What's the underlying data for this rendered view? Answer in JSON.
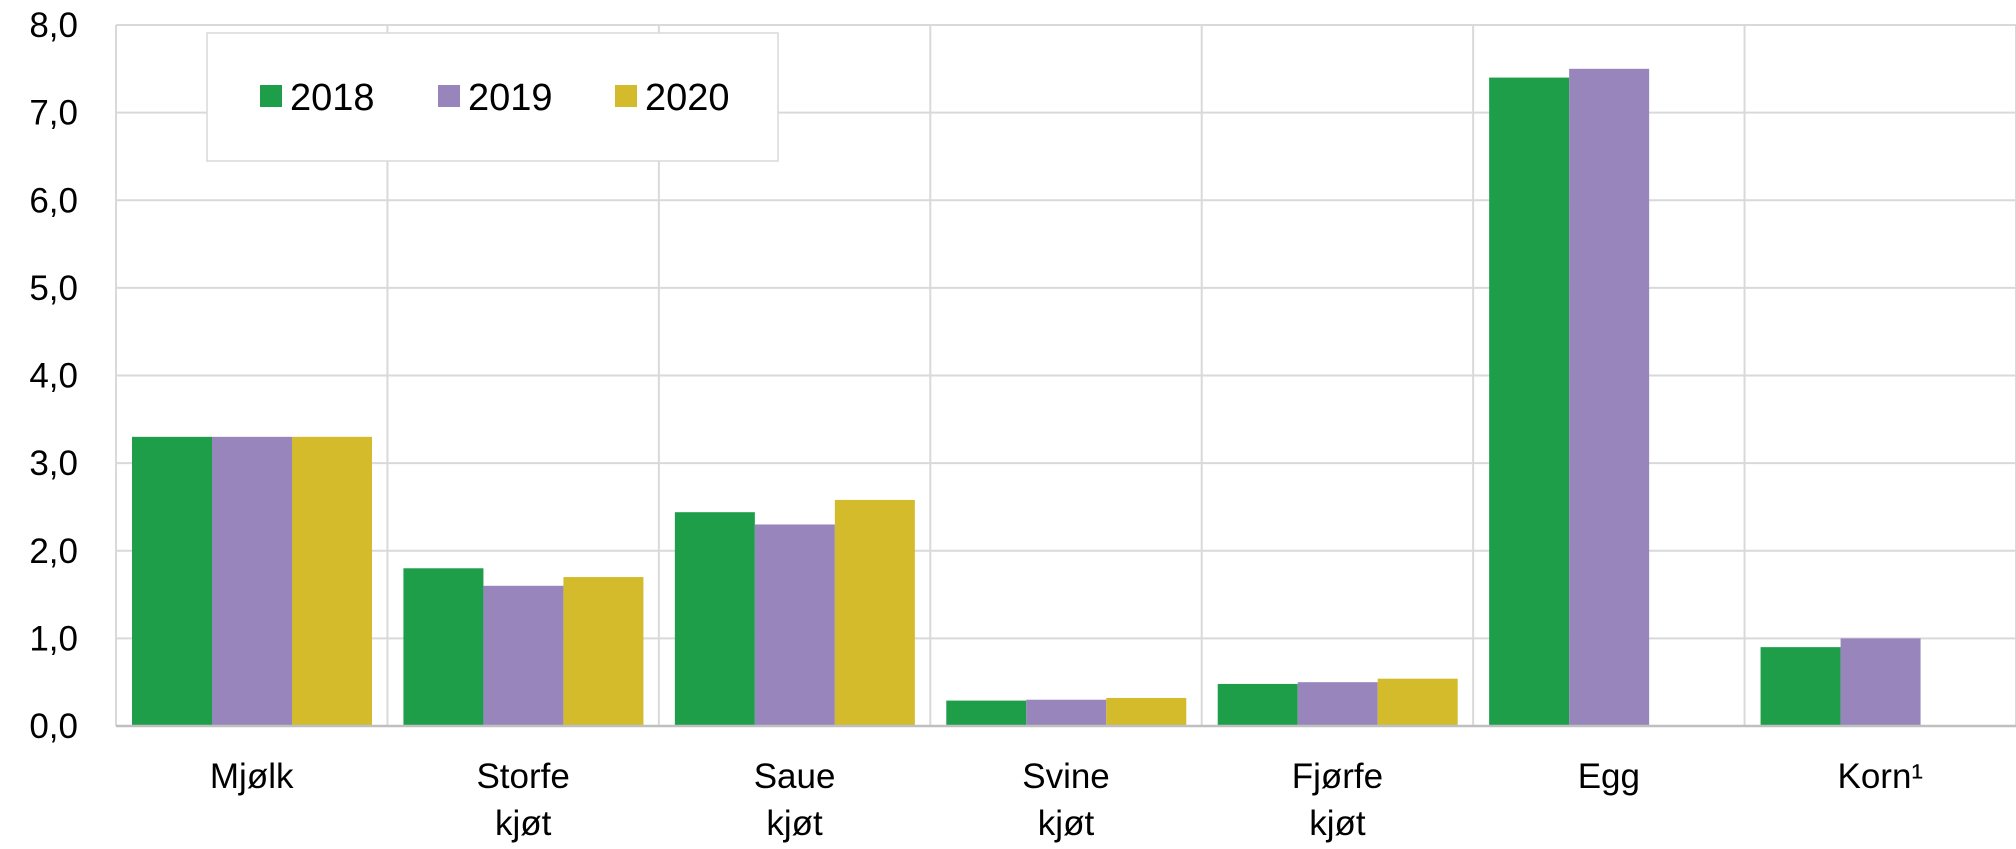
{
  "chart_data": {
    "type": "bar",
    "categories": [
      [
        "Mjølk"
      ],
      [
        "Storfe",
        "kjøt"
      ],
      [
        "Saue",
        "kjøt"
      ],
      [
        "Svine",
        "kjøt"
      ],
      [
        "Fjørfe",
        "kjøt"
      ],
      [
        "Egg"
      ],
      [
        "Korn¹"
      ]
    ],
    "series": [
      {
        "name": "2018",
        "color": "#1f9e4a",
        "values": [
          3.3,
          1.8,
          2.44,
          0.29,
          0.48,
          7.4,
          0.9
        ]
      },
      {
        "name": "2019",
        "color": "#9785bc",
        "values": [
          3.3,
          1.6,
          2.3,
          0.3,
          0.5,
          7.5,
          1.0
        ]
      },
      {
        "name": "2020",
        "color": "#d4bb2c",
        "values": [
          3.3,
          1.7,
          2.58,
          0.32,
          0.54,
          null,
          null
        ]
      }
    ],
    "yticks": [
      "0,0",
      "1,0",
      "2,0",
      "3,0",
      "4,0",
      "5,0",
      "6,0",
      "7,0",
      "8,0"
    ],
    "ylim": [
      0,
      8
    ],
    "grid": true,
    "legend_position": "top-left"
  }
}
